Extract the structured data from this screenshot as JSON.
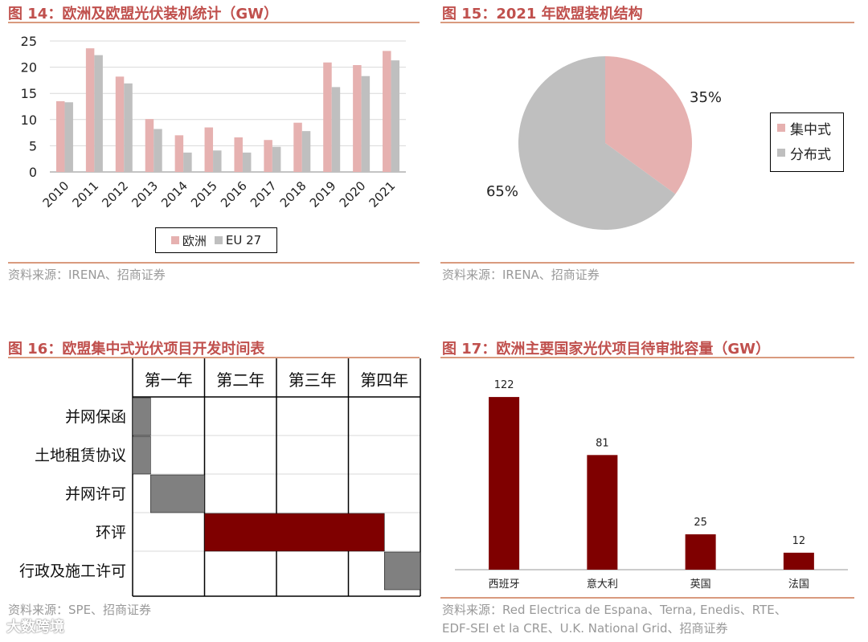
{
  "figures": {
    "fig14_title": "图 14：欧洲及欧盟光伏装机统计（GW）",
    "fig15_title": "图 15：2021 年欧盟装机结构",
    "fig16_title": "图 16：欧盟集中式光伏项目开发时间表",
    "fig17_title": "图 17：欧洲主要国家光伏项目待审批容量（GW）"
  },
  "sources": {
    "fig14": "资料来源：IRENA、招商证券",
    "fig15": "资料来源：IRENA、招商证券",
    "fig16": "资料来源：SPE、招商证券",
    "fig17_line1": "资料来源：Red Electrica de Espana、Terna, Enedis、RTE、",
    "fig17_line2": "EDF-SEI et la CRE、U.K. National Grid、招商证券"
  },
  "watermark": "大数跨境",
  "colors": {
    "pink": "#e6b1b0",
    "gray": "#bfbfbf",
    "darkred": "#7f0000",
    "darkgray": "#808080",
    "accent": "#c0504d"
  },
  "chart_data": [
    {
      "id": "fig14",
      "type": "bar",
      "categories": [
        "2010",
        "2011",
        "2012",
        "2013",
        "2014",
        "2015",
        "2016",
        "2017",
        "2018",
        "2019",
        "2020",
        "2021"
      ],
      "series": [
        {
          "name": "欧洲",
          "values": [
            13.5,
            23.6,
            18.2,
            10.1,
            7.0,
            8.5,
            6.6,
            6.1,
            9.4,
            20.9,
            20.4,
            23.1
          ]
        },
        {
          "name": "EU 27",
          "values": [
            13.3,
            22.3,
            16.9,
            8.2,
            3.7,
            4.1,
            3.7,
            4.8,
            7.8,
            16.2,
            18.3,
            21.3
          ]
        }
      ],
      "ylim": [
        0,
        25
      ],
      "yticks": [
        "0",
        "5",
        "10",
        "15",
        "20",
        "25"
      ],
      "grid": true,
      "legend": "bottom"
    },
    {
      "id": "fig15",
      "type": "pie",
      "labels": [
        "集中式",
        "分布式"
      ],
      "values": [
        35,
        65
      ],
      "value_labels": [
        "35%",
        "65%"
      ],
      "legend": "right"
    },
    {
      "id": "fig16",
      "type": "table",
      "columns": [
        "第一年",
        "第二年",
        "第三年",
        "第四年"
      ],
      "rows": [
        {
          "label": "并网保函",
          "start": 0.0,
          "end": 0.25,
          "color": "darkgray"
        },
        {
          "label": "土地租赁协议",
          "start": 0.0,
          "end": 0.25,
          "color": "darkgray"
        },
        {
          "label": "并网许可",
          "start": 0.25,
          "end": 1.0,
          "color": "darkgray"
        },
        {
          "label": "环评",
          "start": 1.0,
          "end": 3.5,
          "color": "darkred"
        },
        {
          "label": "行政及施工许可",
          "start": 3.5,
          "end": 4.0,
          "color": "darkgray"
        }
      ],
      "xlim": [
        0,
        4
      ]
    },
    {
      "id": "fig17",
      "type": "bar",
      "categories": [
        "西班牙",
        "意大利",
        "英国",
        "法国"
      ],
      "values": [
        122,
        81,
        25,
        12
      ],
      "value_labels": [
        "122",
        "81",
        "25",
        "12"
      ],
      "ylim": [
        0,
        130
      ]
    }
  ]
}
